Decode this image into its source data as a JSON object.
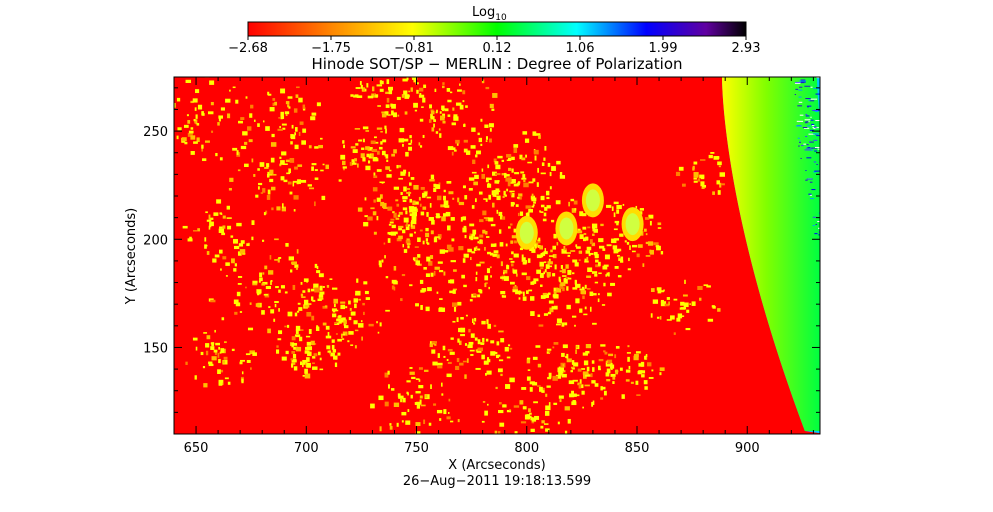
{
  "chart_data": {
    "type": "heatmap",
    "title": "Hinode SOT/SP − MERLIN : Degree of Polarization",
    "xlabel": "X (Arcseconds)",
    "ylabel": "Y (Arcseconds)",
    "xlim": [
      640,
      933
    ],
    "ylim": [
      110,
      275
    ],
    "x_ticks": [
      650,
      700,
      750,
      800,
      850,
      900
    ],
    "y_ticks": [
      150,
      200,
      250
    ],
    "timestamp": "26−Aug−2011 19:18:13.599",
    "colorbar": {
      "label": "Log",
      "label_subscript": "10",
      "ticks": [
        "−2.68",
        "−1.75",
        "−0.81",
        "0.12",
        "1.06",
        "1.99",
        "2.93"
      ],
      "colors": [
        "#ff0000",
        "#ff8000",
        "#ffff00",
        "#00ff00",
        "#00ffff",
        "#0000ff",
        "#000000"
      ],
      "range": [
        -2.68,
        2.93
      ]
    },
    "field_value_log10": -2.68,
    "limb_x_arcsec": 903,
    "bright_features": [
      {
        "x": 848,
        "y": 207,
        "color": "#ffff00"
      },
      {
        "x": 818,
        "y": 205,
        "color": "#ffff00"
      },
      {
        "x": 800,
        "y": 203,
        "color": "#ffff00"
      },
      {
        "x": 830,
        "y": 218,
        "color": "#ffff00"
      }
    ]
  }
}
